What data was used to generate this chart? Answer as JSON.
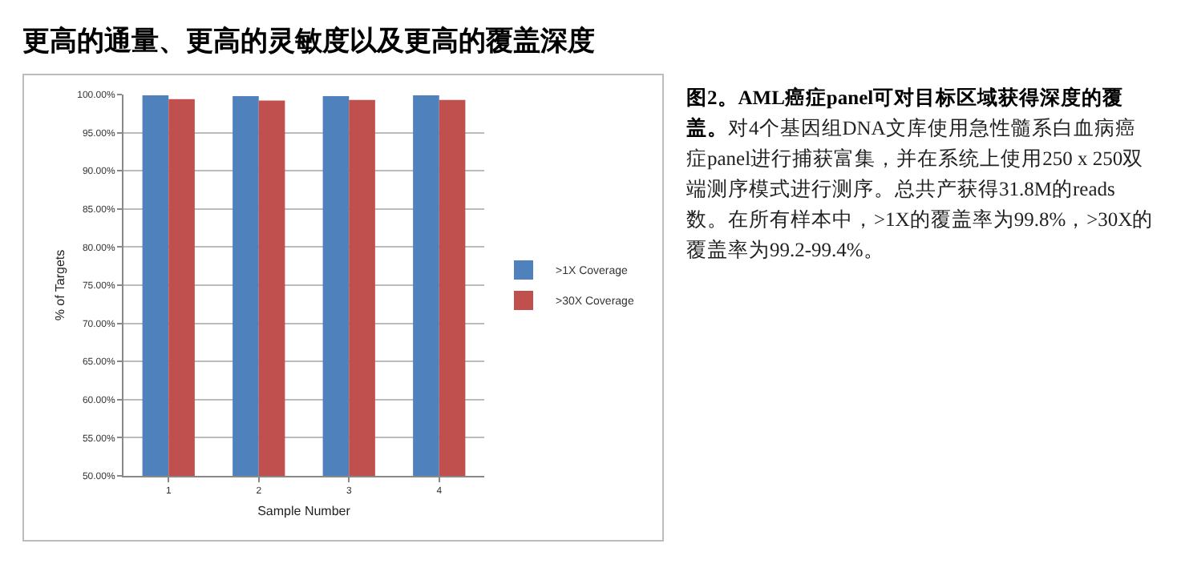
{
  "chart_data": {
    "type": "bar",
    "title": "更高的通量、更高的灵敏度以及更高的覆盖深度",
    "annotations": [
      "图2。AML癌症panel可对目标区域获得深度的覆盖。",
      "对4个基因组DNA文库使用急性髓系白血病癌症panel进行捕获富集，并在系统上使用250 x 250双端测序模式进行测序。总共产获得31.8M的reads数。在所有样本中，>1X的覆盖率为99.8%，>30X的覆盖率为99.2-99.4%。"
    ],
    "xlabel": "Sample Number",
    "ylabel": "% of Targets",
    "categories": [
      "1",
      "2",
      "3",
      "4"
    ],
    "series": [
      {
        "name": ">1X Coverage",
        "color": "#4f81bd",
        "values": [
          99.9,
          99.8,
          99.8,
          99.9
        ]
      },
      {
        "name": ">30X Coverage",
        "color": "#c0504d",
        "values": [
          99.4,
          99.2,
          99.3,
          99.3
        ]
      }
    ],
    "ylim": [
      50,
      100
    ],
    "yticks": [
      {
        "value": 50,
        "label": "50.00%"
      },
      {
        "value": 55,
        "label": "55.00%"
      },
      {
        "value": 60,
        "label": "60.00%"
      },
      {
        "value": 65,
        "label": "65.00%"
      },
      {
        "value": 70,
        "label": "70.00%"
      },
      {
        "value": 75,
        "label": "75.00%"
      },
      {
        "value": 80,
        "label": "80.00%"
      },
      {
        "value": 85,
        "label": "85.00%"
      },
      {
        "value": 90,
        "label": "90.00%"
      },
      {
        "value": 95,
        "label": "95.00%"
      },
      {
        "value": 100,
        "label": "100.00%"
      }
    ],
    "grid": "y",
    "legend": "right"
  }
}
